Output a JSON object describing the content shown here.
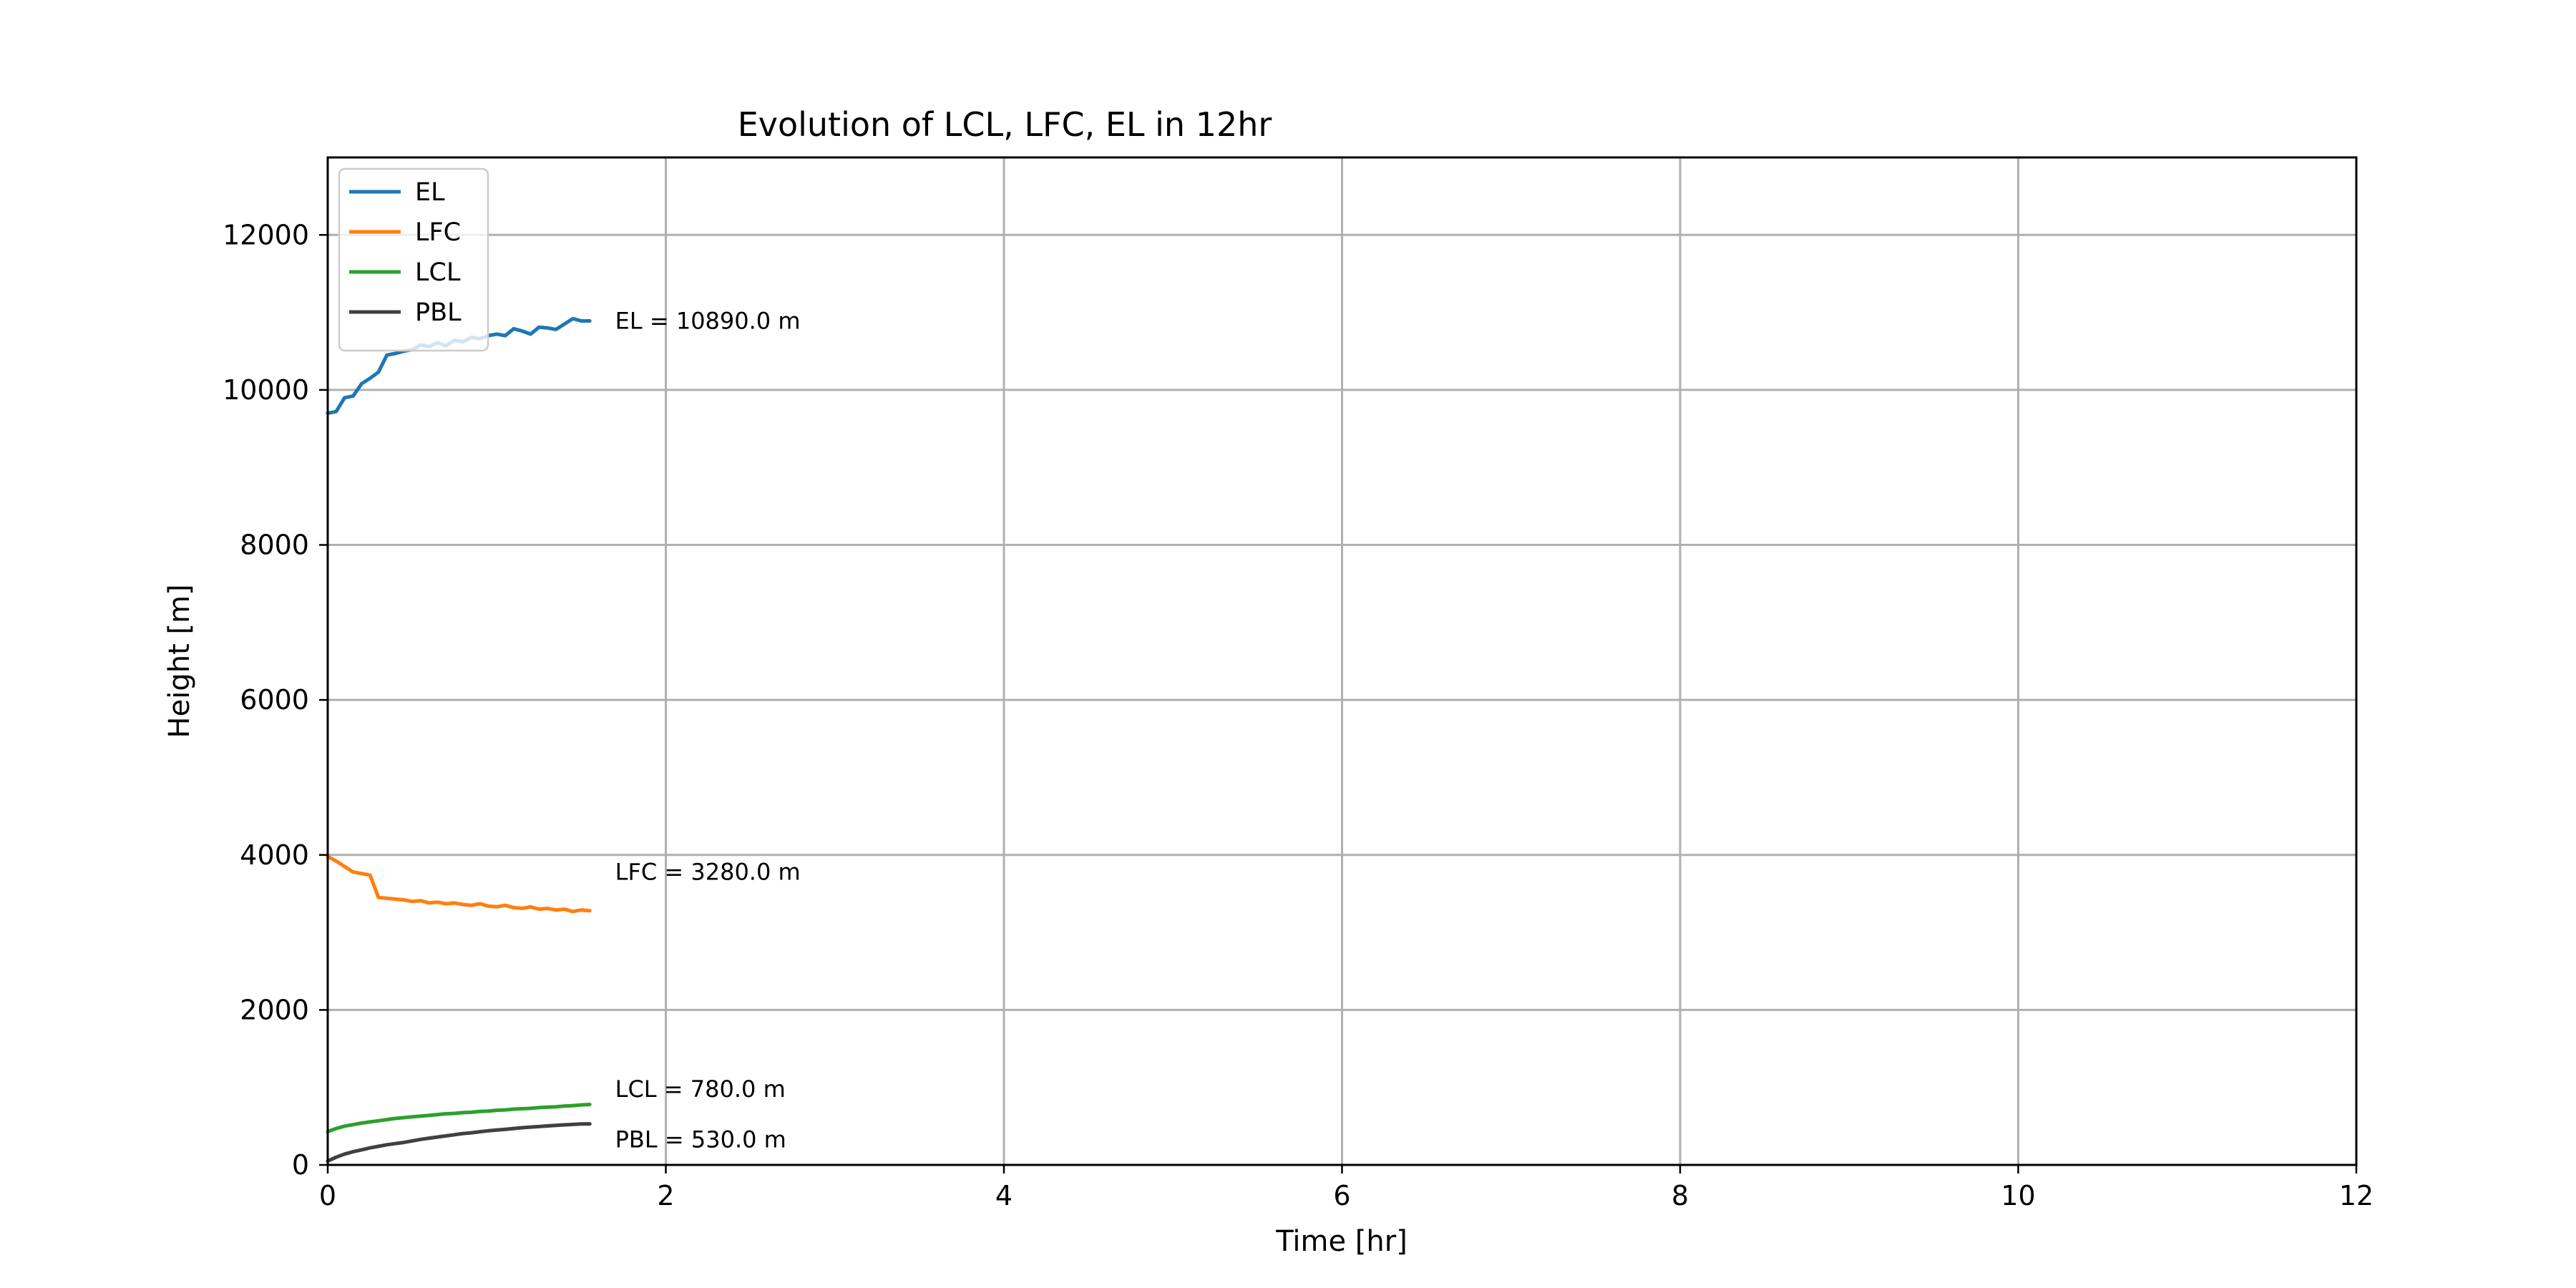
{
  "chart_data": {
    "type": "line",
    "title": "Evolution of LCL, LFC, EL in 12hr",
    "xlabel": "Time [hr]",
    "ylabel": "Height [m]",
    "xlim": [
      0,
      12
    ],
    "ylim": [
      0,
      13000
    ],
    "xticks": [
      0,
      2,
      4,
      6,
      8,
      10,
      12
    ],
    "yticks": [
      0,
      2000,
      4000,
      6000,
      8000,
      10000,
      12000
    ],
    "grid": true,
    "legend_position": "top-left",
    "series": [
      {
        "name": "EL",
        "color": "#1f77b4",
        "x": [
          0,
          0.05,
          0.1,
          0.15,
          0.2,
          0.25,
          0.3,
          0.35,
          0.4,
          0.45,
          0.5,
          0.55,
          0.6,
          0.65,
          0.7,
          0.75,
          0.8,
          0.85,
          0.9,
          0.95,
          1.0,
          1.05,
          1.1,
          1.15,
          1.2,
          1.25,
          1.3,
          1.35,
          1.4,
          1.45,
          1.5,
          1.55
        ],
        "values": [
          9700,
          9720,
          9900,
          9920,
          10080,
          10150,
          10230,
          10450,
          10470,
          10500,
          10520,
          10580,
          10560,
          10610,
          10570,
          10640,
          10620,
          10680,
          10660,
          10700,
          10720,
          10700,
          10790,
          10760,
          10720,
          10810,
          10800,
          10780,
          10850,
          10920,
          10890,
          10890
        ]
      },
      {
        "name": "LFC",
        "color": "#ff7f0e",
        "x": [
          0,
          0.05,
          0.1,
          0.15,
          0.2,
          0.25,
          0.3,
          0.35,
          0.4,
          0.45,
          0.5,
          0.55,
          0.6,
          0.65,
          0.7,
          0.75,
          0.8,
          0.85,
          0.9,
          0.95,
          1.0,
          1.05,
          1.1,
          1.15,
          1.2,
          1.25,
          1.3,
          1.35,
          1.4,
          1.45,
          1.5,
          1.55
        ],
        "values": [
          3980,
          3920,
          3850,
          3780,
          3760,
          3740,
          3450,
          3440,
          3430,
          3420,
          3400,
          3410,
          3380,
          3390,
          3370,
          3380,
          3360,
          3350,
          3370,
          3340,
          3330,
          3350,
          3320,
          3310,
          3330,
          3300,
          3310,
          3290,
          3300,
          3270,
          3290,
          3280
        ]
      },
      {
        "name": "LCL",
        "color": "#2ca02c",
        "x": [
          0,
          0.05,
          0.1,
          0.15,
          0.2,
          0.25,
          0.3,
          0.35,
          0.4,
          0.45,
          0.5,
          0.55,
          0.6,
          0.65,
          0.7,
          0.75,
          0.8,
          0.85,
          0.9,
          0.95,
          1.0,
          1.05,
          1.1,
          1.15,
          1.2,
          1.25,
          1.3,
          1.35,
          1.4,
          1.45,
          1.5,
          1.55
        ],
        "values": [
          430,
          470,
          500,
          520,
          540,
          555,
          570,
          585,
          600,
          610,
          620,
          630,
          640,
          650,
          660,
          665,
          675,
          680,
          690,
          695,
          705,
          710,
          720,
          725,
          730,
          740,
          745,
          750,
          760,
          765,
          775,
          780
        ]
      },
      {
        "name": "PBL",
        "color": "#404040",
        "x": [
          0,
          0.05,
          0.1,
          0.15,
          0.2,
          0.25,
          0.3,
          0.35,
          0.4,
          0.45,
          0.5,
          0.55,
          0.6,
          0.65,
          0.7,
          0.75,
          0.8,
          0.85,
          0.9,
          0.95,
          1.0,
          1.05,
          1.1,
          1.15,
          1.2,
          1.25,
          1.3,
          1.35,
          1.4,
          1.45,
          1.5,
          1.55
        ],
        "values": [
          50,
          100,
          140,
          170,
          195,
          220,
          240,
          260,
          275,
          290,
          310,
          330,
          345,
          360,
          375,
          390,
          405,
          415,
          428,
          440,
          450,
          460,
          470,
          480,
          488,
          495,
          503,
          510,
          517,
          523,
          528,
          530
        ]
      }
    ],
    "annotations": [
      {
        "text": "EL = 10890.0 m",
        "x": 1.7,
        "y": 10890
      },
      {
        "text": "LFC = 3280.0 m",
        "x": 1.7,
        "y": 3780
      },
      {
        "text": "LCL = 780.0 m",
        "x": 1.7,
        "y": 980
      },
      {
        "text": "PBL = 530.0 m",
        "x": 1.7,
        "y": 330
      }
    ]
  }
}
